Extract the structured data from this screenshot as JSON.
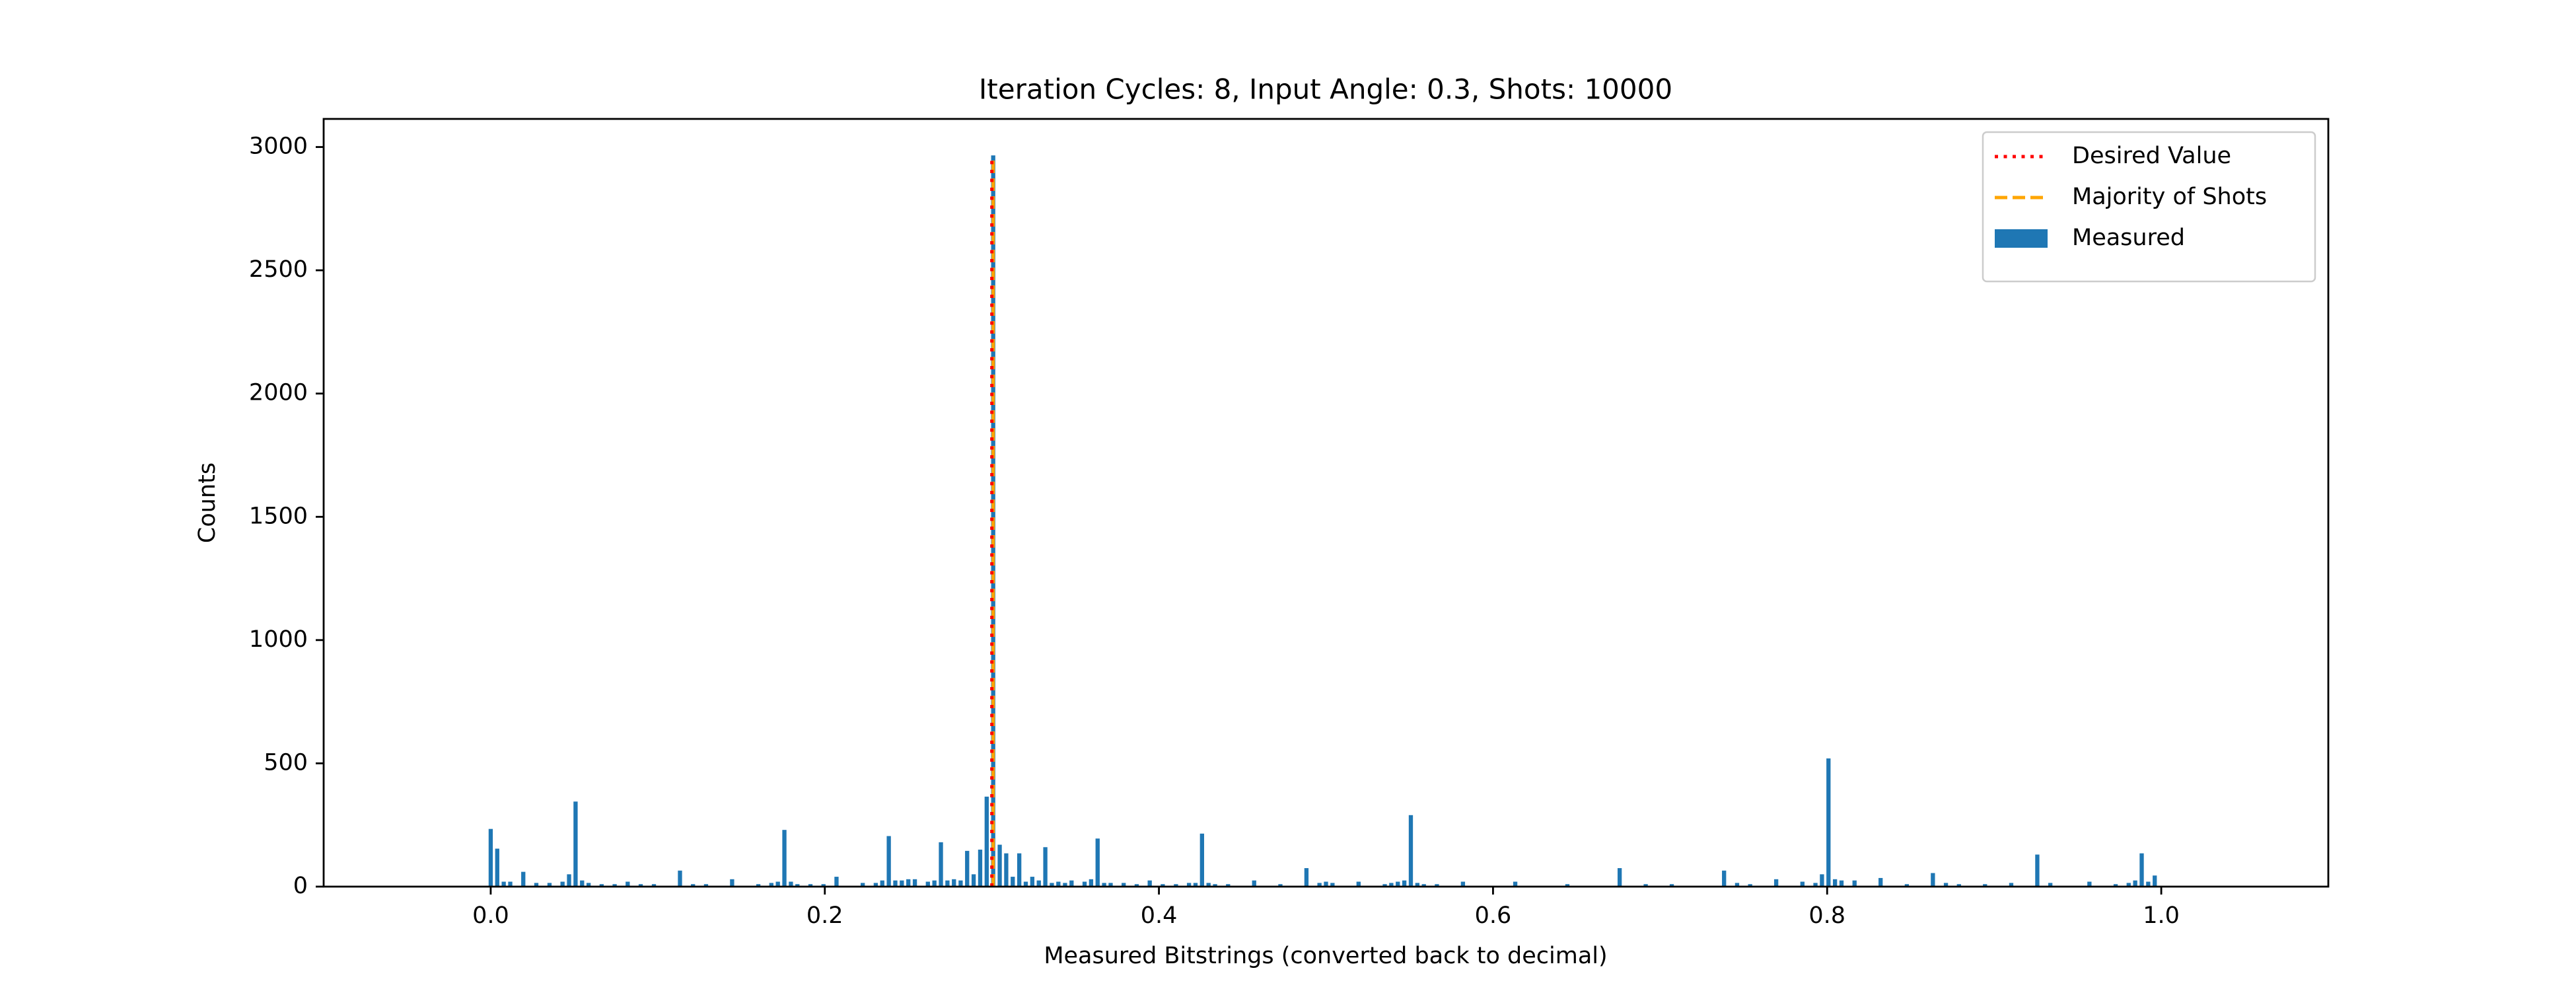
{
  "chart_data": {
    "type": "bar",
    "title": "Iteration Cycles: 8, Input Angle: 0.3, Shots: 10000",
    "x_label": "Measured Bitstrings (converted back to decimal)",
    "y_label": "Counts",
    "xlim": [
      -0.1,
      1.1
    ],
    "ylim": [
      0,
      3114
    ],
    "xticks": [
      {
        "value": 0,
        "label": "0.0"
      },
      0.2,
      0.4,
      0.6,
      0.8,
      {
        "value": 1,
        "label": "1.0"
      }
    ],
    "yticks": [
      0,
      500,
      1000,
      1500,
      2000,
      2500,
      3000
    ],
    "legend": "upper right",
    "reference_lines": [
      {
        "name": "Desired Value",
        "color": "#ff0000",
        "style": "dotted",
        "x": 0.3,
        "top": 2966
      },
      {
        "name": "Majority of Shots",
        "color": "#ffa500",
        "style": "dashed",
        "x": 0.3008,
        "top": 2966
      }
    ],
    "series": [
      {
        "name": "Measured",
        "color": "#1f77b4",
        "x": [
          0,
          0.0039,
          0.0078,
          0.0117,
          0.0195,
          0.0273,
          0.0352,
          0.043,
          0.0469,
          0.0508,
          0.0547,
          0.0586,
          0.0664,
          0.0742,
          0.082,
          0.0898,
          0.0977,
          0.1133,
          0.1211,
          0.1289,
          0.1445,
          0.1602,
          0.168,
          0.1719,
          0.1758,
          0.1797,
          0.1836,
          0.1914,
          0.1992,
          0.207,
          0.2227,
          0.2305,
          0.2344,
          0.2383,
          0.2422,
          0.2461,
          0.25,
          0.2539,
          0.2617,
          0.2656,
          0.2695,
          0.2734,
          0.2773,
          0.2813,
          0.2852,
          0.2891,
          0.293,
          0.2969,
          0.3008,
          0.3047,
          0.3086,
          0.3125,
          0.3164,
          0.3203,
          0.3242,
          0.3281,
          0.332,
          0.3359,
          0.3398,
          0.3438,
          0.3477,
          0.3555,
          0.3594,
          0.3633,
          0.3672,
          0.3711,
          0.3789,
          0.3867,
          0.3945,
          0.4023,
          0.4102,
          0.418,
          0.4219,
          0.4258,
          0.4297,
          0.4336,
          0.4414,
          0.457,
          0.4727,
          0.4883,
          0.4961,
          0.5,
          0.5039,
          0.5195,
          0.5352,
          0.5391,
          0.543,
          0.5469,
          0.5508,
          0.5547,
          0.5586,
          0.5664,
          0.582,
          0.6133,
          0.6445,
          0.6758,
          0.6914,
          0.707,
          0.7383,
          0.7461,
          0.7539,
          0.7695,
          0.7852,
          0.793,
          0.7969,
          0.8008,
          0.8047,
          0.8086,
          0.8164,
          0.832,
          0.8477,
          0.8633,
          0.8711,
          0.8789,
          0.8945,
          0.9102,
          0.9258,
          0.9336,
          0.957,
          0.9727,
          0.9805,
          0.9844,
          0.9883,
          0.9922,
          0.9961
        ],
        "values": [
          234,
          154,
          20,
          20,
          60,
          15,
          15,
          20,
          50,
          345,
          25,
          15,
          10,
          10,
          20,
          10,
          10,
          65,
          10,
          10,
          30,
          10,
          15,
          20,
          230,
          20,
          10,
          10,
          10,
          40,
          15,
          15,
          25,
          205,
          25,
          25,
          30,
          30,
          20,
          25,
          180,
          25,
          30,
          25,
          145,
          50,
          150,
          365,
          2966,
          170,
          135,
          40,
          135,
          20,
          40,
          25,
          160,
          15,
          20,
          15,
          25,
          20,
          30,
          195,
          15,
          15,
          15,
          10,
          25,
          10,
          10,
          15,
          15,
          215,
          15,
          10,
          10,
          25,
          10,
          75,
          15,
          20,
          15,
          20,
          10,
          15,
          20,
          25,
          290,
          15,
          10,
          10,
          20,
          20,
          10,
          75,
          10,
          10,
          65,
          15,
          10,
          30,
          20,
          15,
          50,
          520,
          30,
          25,
          25,
          35,
          10,
          55,
          15,
          10,
          10,
          15,
          130,
          15,
          20,
          10,
          15,
          25,
          135,
          20,
          45
        ]
      }
    ]
  }
}
